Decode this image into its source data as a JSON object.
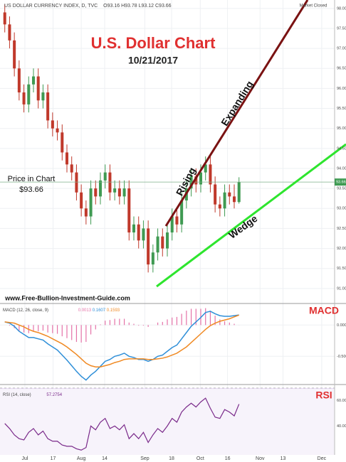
{
  "header": {
    "symbol": "US DOLLAR CURRENCY INDEX, D, TVC",
    "open": "O93.16",
    "high": "H93.78",
    "low": "L93.12",
    "close": "C93.66",
    "status": "Market Closed"
  },
  "chart_data": [
    {
      "type": "candlestick",
      "title": "U.S. Dollar Chart",
      "subtitle": "10/21/2017",
      "annotations": {
        "price_label": "Price in Chart",
        "price_value": "$93.66",
        "rising": "Rising",
        "expanding": "Expanding",
        "wedge": "Wedge",
        "source": "www.Free-Bullion-Investment-Guide.com"
      },
      "x": [
        1,
        2,
        3,
        4,
        5,
        6,
        7,
        8,
        9,
        10,
        11,
        12,
        13,
        14,
        15,
        16,
        17,
        18,
        19,
        20,
        21,
        22,
        23,
        24,
        25,
        26,
        27,
        28,
        29,
        30,
        31,
        32,
        33,
        34,
        35,
        36,
        37,
        38,
        39,
        40,
        41,
        42,
        43,
        44,
        45,
        46,
        47,
        48,
        49,
        50
      ],
      "open": [
        97.9,
        97.6,
        97.2,
        96.5,
        95.9,
        95.6,
        96.1,
        96.3,
        95.7,
        95.9,
        95.2,
        95.0,
        94.9,
        94.4,
        94.1,
        93.9,
        93.4,
        93.0,
        92.8,
        93.5,
        93.3,
        93.7,
        93.9,
        93.4,
        93.5,
        93.3,
        93.5,
        92.4,
        92.6,
        92.2,
        92.5,
        91.6,
        91.9,
        92.3,
        92.0,
        92.4,
        92.8,
        92.6,
        93.2,
        93.5,
        93.8,
        93.6,
        93.9,
        94.1,
        93.6,
        93.1,
        93.0,
        93.4,
        93.3,
        93.16
      ],
      "high": [
        98.1,
        97.8,
        97.4,
        96.7,
        96.1,
        96.3,
        96.5,
        96.5,
        96.1,
        96.1,
        95.4,
        95.2,
        95.1,
        94.6,
        94.3,
        94.1,
        93.6,
        93.2,
        93.7,
        93.7,
        93.9,
        94.1,
        94.1,
        93.7,
        93.7,
        93.7,
        93.7,
        92.8,
        92.8,
        92.7,
        92.7,
        92.1,
        92.5,
        92.5,
        92.6,
        93.0,
        93.0,
        93.4,
        93.7,
        94.0,
        94.0,
        94.1,
        94.3,
        94.3,
        93.8,
        93.3,
        93.6,
        93.6,
        93.6,
        93.78
      ],
      "low": [
        97.4,
        97.0,
        96.3,
        95.7,
        95.4,
        95.4,
        95.9,
        95.5,
        95.5,
        95.0,
        94.8,
        94.7,
        94.2,
        93.9,
        93.7,
        93.2,
        92.8,
        92.6,
        92.6,
        93.1,
        93.1,
        93.5,
        93.2,
        93.2,
        93.1,
        93.1,
        92.2,
        92.2,
        92.0,
        92.0,
        91.4,
        91.4,
        91.7,
        91.8,
        91.8,
        92.2,
        92.4,
        92.4,
        93.0,
        93.3,
        93.4,
        93.4,
        93.7,
        93.4,
        92.9,
        92.8,
        92.8,
        93.1,
        93.0,
        93.12
      ],
      "close": [
        97.6,
        97.2,
        96.5,
        95.9,
        95.6,
        96.1,
        96.3,
        95.7,
        95.9,
        95.2,
        95.0,
        94.9,
        94.4,
        94.1,
        93.9,
        93.4,
        93.0,
        92.8,
        93.5,
        93.3,
        93.7,
        93.9,
        93.4,
        93.5,
        93.3,
        93.5,
        92.4,
        92.6,
        92.2,
        92.5,
        91.6,
        91.9,
        92.3,
        92.0,
        92.4,
        92.8,
        92.6,
        93.2,
        93.5,
        93.8,
        93.6,
        93.9,
        94.1,
        93.6,
        93.1,
        93.0,
        93.4,
        93.3,
        93.16,
        93.66
      ],
      "up_color": "#3f9a52",
      "down_color": "#c0392b",
      "price_line": {
        "value": 93.66,
        "label": "93.66"
      },
      "xlim": [
        0,
        70
      ],
      "xticks": [
        {
          "value": 5.2,
          "label": "Jul"
        },
        {
          "value": 11.1,
          "label": "17"
        },
        {
          "value": 17,
          "label": "Aug"
        },
        {
          "value": 21.9,
          "label": "14"
        },
        {
          "value": 30.3,
          "label": "Sep"
        },
        {
          "value": 35.9,
          "label": "18"
        },
        {
          "value": 41.9,
          "label": "Oct"
        },
        {
          "value": 47.6,
          "label": "16"
        },
        {
          "value": 54.4,
          "label": "Nov"
        },
        {
          "value": 59.2,
          "label": "13"
        },
        {
          "value": 67.3,
          "label": "Dec"
        }
      ],
      "ylim": [
        90.66,
        98.21
      ],
      "yticks": [
        {
          "value": 91,
          "label": "91.00"
        },
        {
          "value": 91.5,
          "label": "91.50"
        },
        {
          "value": 92,
          "label": "92.00"
        },
        {
          "value": 92.5,
          "label": "92.50"
        },
        {
          "value": 93,
          "label": "93.00"
        },
        {
          "value": 93.5,
          "label": "93.50"
        },
        {
          "value": 94,
          "label": "94.00"
        },
        {
          "value": 94.5,
          "label": "94.50"
        },
        {
          "value": 95,
          "label": "95.00"
        },
        {
          "value": 95.5,
          "label": "95.50"
        },
        {
          "value": 96,
          "label": "96.00"
        },
        {
          "value": 96.5,
          "label": "96.50"
        },
        {
          "value": 97,
          "label": "97.00"
        },
        {
          "value": 97.5,
          "label": "97.50"
        },
        {
          "value": 98,
          "label": "98.00"
        }
      ],
      "grid": true
    },
    {
      "type": "macd",
      "title": "MACD",
      "legend": "MACD (12, 26, close, 9)",
      "readouts": [
        "0.0013",
        "0.1607",
        "0.1593"
      ],
      "histogram": {
        "color": "#e573a8",
        "values": [
          0,
          -0.01,
          -0.05,
          -0.1,
          -0.12,
          -0.13,
          -0.1,
          -0.1,
          -0.09,
          -0.12,
          -0.13,
          -0.14,
          -0.18,
          -0.21,
          -0.24,
          -0.27,
          -0.28,
          -0.27,
          -0.15,
          -0.07,
          0.01,
          0.07,
          0.08,
          0.1,
          0.1,
          0.1,
          0.04,
          0.02,
          -0.01,
          -0.01,
          -0.03,
          0,
          0.04,
          0.05,
          0.09,
          0.12,
          0.13,
          0.18,
          0.23,
          0.26,
          0.26,
          0.26,
          0.27,
          0.23,
          0.15,
          0.09,
          0.06,
          0.04,
          0.02,
          0.0013
        ]
      },
      "series": [
        {
          "color": "#2f8fd8",
          "values": [
            0.05,
            0.03,
            -0.02,
            -0.1,
            -0.15,
            -0.2,
            -0.2,
            -0.22,
            -0.24,
            -0.3,
            -0.35,
            -0.4,
            -0.48,
            -0.56,
            -0.65,
            -0.74,
            -0.82,
            -0.88,
            -0.8,
            -0.74,
            -0.66,
            -0.58,
            -0.55,
            -0.5,
            -0.48,
            -0.45,
            -0.5,
            -0.52,
            -0.55,
            -0.55,
            -0.58,
            -0.55,
            -0.5,
            -0.48,
            -0.42,
            -0.36,
            -0.32,
            -0.22,
            -0.12,
            -0.02,
            0.05,
            0.12,
            0.2,
            0.22,
            0.18,
            0.15,
            0.14,
            0.14,
            0.15,
            0.1607
          ]
        },
        {
          "color": "#f08a24",
          "values": [
            0.05,
            0.04,
            0.03,
            0,
            -0.03,
            -0.07,
            -0.1,
            -0.12,
            -0.15,
            -0.18,
            -0.22,
            -0.26,
            -0.3,
            -0.35,
            -0.41,
            -0.47,
            -0.54,
            -0.61,
            -0.65,
            -0.67,
            -0.67,
            -0.65,
            -0.63,
            -0.6,
            -0.58,
            -0.55,
            -0.54,
            -0.54,
            -0.54,
            -0.54,
            -0.55,
            -0.55,
            -0.54,
            -0.53,
            -0.51,
            -0.48,
            -0.45,
            -0.4,
            -0.35,
            -0.28,
            -0.21,
            -0.14,
            -0.07,
            -0.01,
            0.03,
            0.06,
            0.08,
            0.1,
            0.13,
            0.1593
          ]
        }
      ],
      "ylim": [
        -0.917,
        0.333
      ],
      "yticks": [
        {
          "value": 0,
          "label": "0.0000"
        },
        {
          "value": -0.5,
          "label": "-0.5000"
        }
      ]
    },
    {
      "type": "rsi",
      "title": "RSI",
      "legend": "RSI (14, close)",
      "readout": "57.2754",
      "color": "#7a2a8a",
      "band": [
        30,
        70
      ],
      "band_color": "#e8dcf5",
      "values": [
        42,
        38,
        33,
        30,
        29,
        35,
        38,
        33,
        36,
        30,
        28,
        28,
        25,
        24,
        24,
        22,
        21,
        23,
        40,
        37,
        43,
        46,
        38,
        40,
        37,
        41,
        30,
        34,
        30,
        35,
        27,
        33,
        38,
        35,
        40,
        46,
        43,
        51,
        55,
        58,
        55,
        59,
        62,
        54,
        47,
        46,
        53,
        51,
        48,
        57.2754
      ],
      "ylim": [
        17.2,
        70.5
      ],
      "yticks": [
        {
          "value": 60,
          "label": "60.0000"
        },
        {
          "value": 40,
          "label": "40.0000"
        }
      ]
    }
  ]
}
